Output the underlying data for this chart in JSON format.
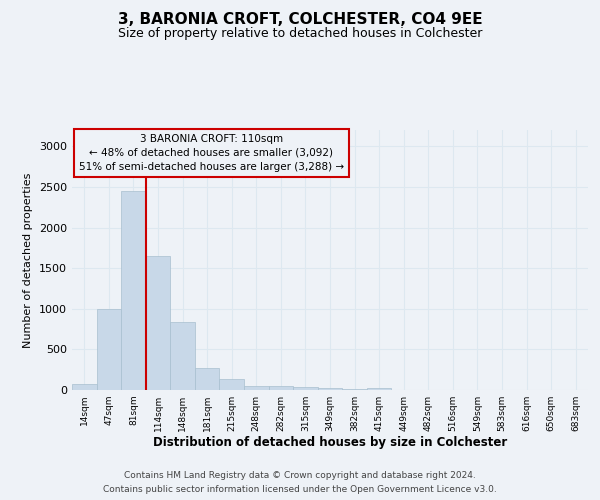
{
  "title": "3, BARONIA CROFT, COLCHESTER, CO4 9EE",
  "subtitle": "Size of property relative to detached houses in Colchester",
  "xlabel": "Distribution of detached houses by size in Colchester",
  "ylabel": "Number of detached properties",
  "footnote1": "Contains HM Land Registry data © Crown copyright and database right 2024.",
  "footnote2": "Contains public sector information licensed under the Open Government Licence v3.0.",
  "annotation_line1": "3 BARONIA CROFT: 110sqm",
  "annotation_line2": "← 48% of detached houses are smaller (3,092)",
  "annotation_line3": "51% of semi-detached houses are larger (3,288) →",
  "bar_labels": [
    "14sqm",
    "47sqm",
    "81sqm",
    "114sqm",
    "148sqm",
    "181sqm",
    "215sqm",
    "248sqm",
    "282sqm",
    "315sqm",
    "349sqm",
    "382sqm",
    "415sqm",
    "449sqm",
    "482sqm",
    "516sqm",
    "549sqm",
    "583sqm",
    "616sqm",
    "650sqm",
    "683sqm"
  ],
  "bar_values": [
    75,
    1000,
    2450,
    1650,
    840,
    270,
    140,
    55,
    45,
    40,
    25,
    10,
    25,
    0,
    0,
    0,
    0,
    0,
    0,
    0,
    0
  ],
  "bar_color": "#c8d8e8",
  "bar_edge_color": "#a8bfcf",
  "property_line_x": 2.5,
  "ylim": [
    0,
    3200
  ],
  "yticks": [
    0,
    500,
    1000,
    1500,
    2000,
    2500,
    3000
  ],
  "annotation_box_color": "#cc0000",
  "property_line_color": "#cc0000",
  "grid_color": "#dde8f0",
  "bg_color": "#eef2f7"
}
